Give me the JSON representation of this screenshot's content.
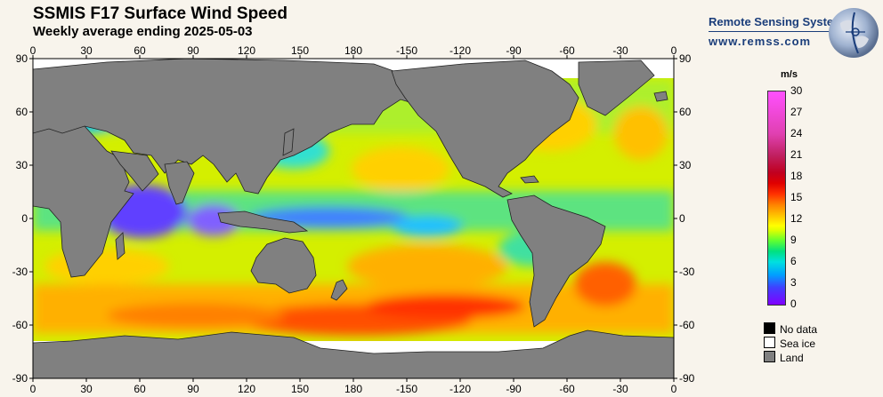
{
  "title": "SSMIS F17 Surface Wind Speed",
  "subtitle": "Weekly average ending 2025-05-03",
  "brand": {
    "name": "Remote Sensing Systems",
    "url": "www.remss.com"
  },
  "axes": {
    "top_labels": [
      "0",
      "30",
      "60",
      "90",
      "120",
      "150",
      "180",
      "-150",
      "-120",
      "-90",
      "-60",
      "-30",
      "0"
    ],
    "bottom_labels": [
      "0",
      "30",
      "60",
      "90",
      "120",
      "150",
      "180",
      "-150",
      "-120",
      "-90",
      "-60",
      "-30",
      "0"
    ],
    "left_labels": [
      "90",
      "60",
      "30",
      "0",
      "-30",
      "-60",
      "-90"
    ],
    "right_labels": [
      "90",
      "60",
      "30",
      "0",
      "-30",
      "-60",
      "-90"
    ]
  },
  "colorbar": {
    "unit": "m/s",
    "ticks": [
      "30",
      "27",
      "24",
      "21",
      "18",
      "15",
      "12",
      "9",
      "6",
      "3",
      "0"
    ],
    "range": [
      0,
      30
    ]
  },
  "legend": [
    {
      "label": "No data",
      "color": "#000000"
    },
    {
      "label": "Sea ice",
      "color": "#ffffff"
    },
    {
      "label": "Land",
      "color": "#808080"
    }
  ],
  "colors": {
    "land": "#808080",
    "sea_ice": "#ffffff",
    "ocean_base": "#d8f000"
  }
}
